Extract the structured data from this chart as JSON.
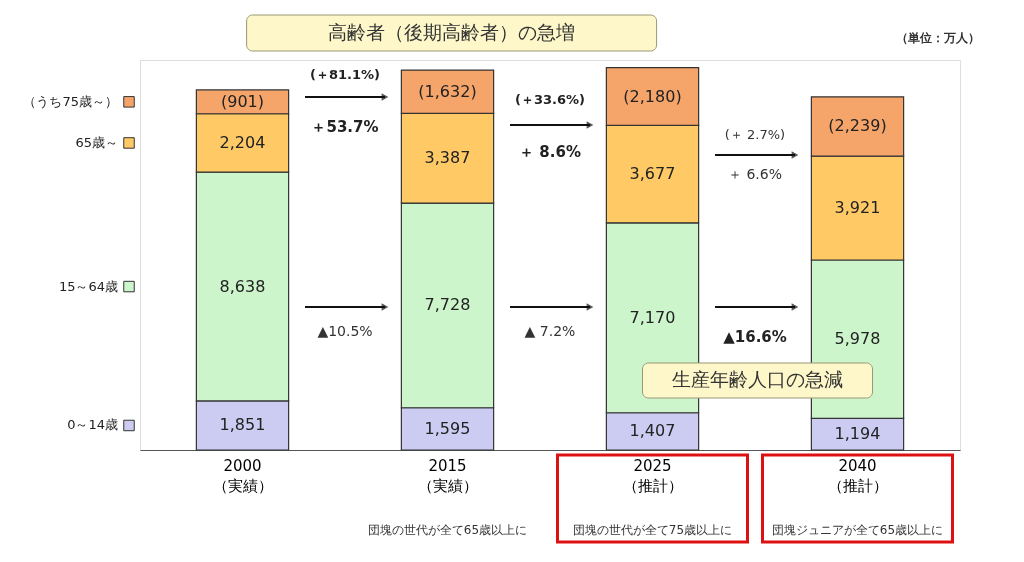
{
  "chart_data": {
    "type": "bar",
    "stacked": true,
    "categories": [
      "2000\n（実績）",
      "2015\n（実績）",
      "2025\n（推計）",
      "2040\n（推計）"
    ],
    "series": [
      {
        "name": "0～14歳",
        "color": "#ccccf2",
        "values": [
          1851,
          1595,
          1407,
          1194
        ],
        "value_labels": [
          "1,851",
          "1,595",
          "1,407",
          "1,194"
        ]
      },
      {
        "name": "15～64歳",
        "color": "#ccf5cc",
        "values": [
          8638,
          7728,
          7170,
          5978
        ],
        "value_labels": [
          "8,638",
          "7,728",
          "7,170",
          "5,978"
        ]
      },
      {
        "name": "65歳～",
        "color": "#ffc966",
        "values": [
          2204,
          3387,
          3677,
          3921
        ],
        "value_labels": [
          "2,204",
          "3,387",
          "3,677",
          "3,921"
        ]
      },
      {
        "name": "（うち75歳～）",
        "color": "#f5a56a",
        "values": [
          901,
          1632,
          2180,
          2239
        ],
        "value_labels": [
          "(901)",
          "(1,632)",
          "(2,180)",
          "(2,239)"
        ]
      }
    ],
    "annotations": [
      "(＋81.1%)",
      "＋53.7%",
      "▲10.5%",
      "(＋33.6%)",
      "＋ 8.6%",
      "▲ 7.2%",
      "(＋ 2.7%)",
      "＋ 6.6%",
      "▲16.6%",
      "高齢者（後期高齢者）の急増",
      "生産年齢人口の急減",
      "（単位：万人）",
      "団塊の世代が全て65歳以上に",
      "団塊の世代が全て75歳以上に",
      "団塊ジュニアが全て65歳以上に"
    ],
    "legend": "left"
  }
}
